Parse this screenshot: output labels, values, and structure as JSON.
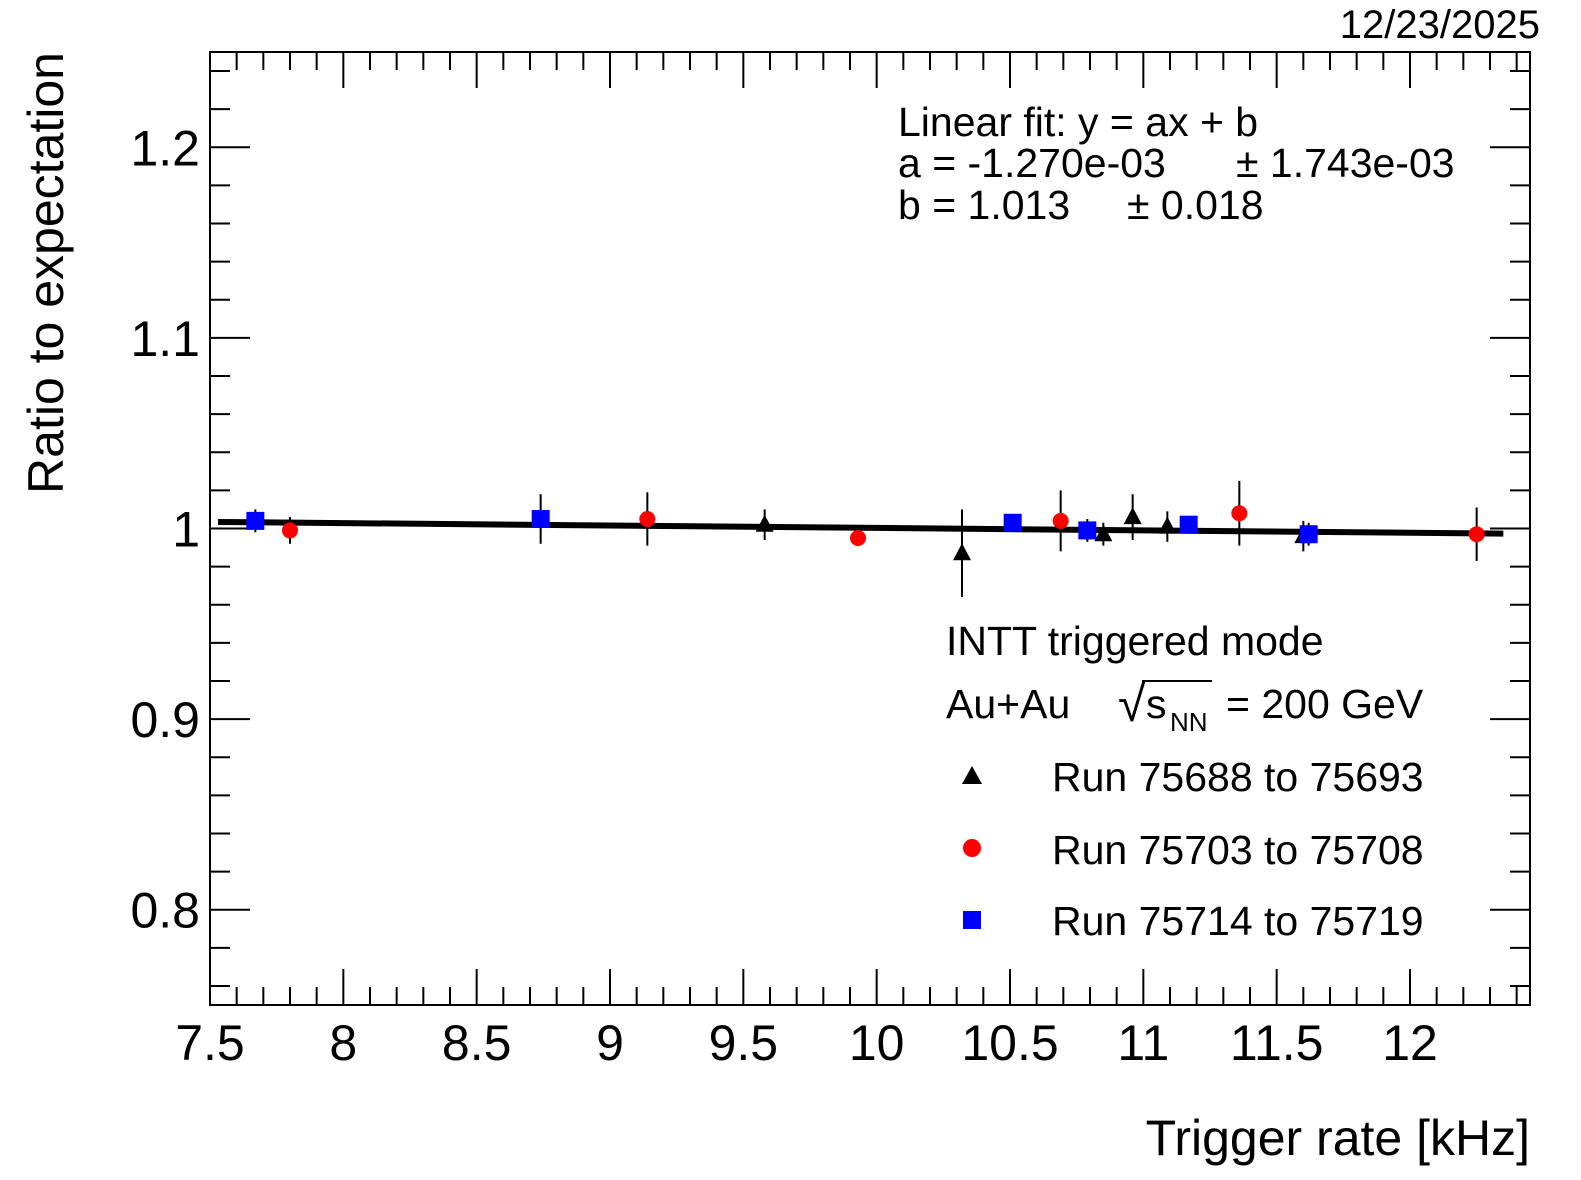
{
  "date": "12/23/2025",
  "chart_data": {
    "type": "scatter",
    "xlabel": "Trigger rate [kHz]",
    "ylabel": "Ratio to expectation",
    "xlim": [
      7.5,
      12.45
    ],
    "ylim": [
      0.75,
      1.25
    ],
    "xticks": [
      7.5,
      8,
      8.5,
      9,
      9.5,
      10,
      10.5,
      11,
      11.5,
      12
    ],
    "xtick_labels": [
      "7.5",
      "8",
      "8.5",
      "9",
      "9.5",
      "10",
      "10.5",
      "11",
      "11.5",
      "12"
    ],
    "yticks": [
      0.8,
      0.9,
      1.0,
      1.1,
      1.2
    ],
    "ytick_labels": [
      "0.8",
      "0.9",
      "1",
      "1.1",
      "1.2"
    ],
    "grid": false,
    "fit": {
      "title": "Linear fit: y = ax + b",
      "a_text": "a = -1.270e-03",
      "a_err_text": "± 1.743e-03",
      "b_text": "b = 1.013",
      "b_err_text": "± 0.018",
      "a": -0.00127,
      "b": 1.013,
      "x_range": [
        7.53,
        12.35
      ]
    },
    "legend": {
      "position": "bottom-right",
      "header1": "INTT triggered mode",
      "collision": "Au+Au",
      "sqrt_symbol": "√",
      "energy_var": "s",
      "energy_sub": "NN",
      "energy_value": "= 200 GeV"
    },
    "series": [
      {
        "name": "Run 75688 to 75693",
        "marker": "triangle",
        "color": "#000000",
        "points": [
          {
            "x": 9.58,
            "y": 1.002,
            "err": 0.008
          },
          {
            "x": 10.32,
            "y": 0.987,
            "err": 0.023
          },
          {
            "x": 10.85,
            "y": 0.997,
            "err": 0.006
          },
          {
            "x": 10.96,
            "y": 1.006,
            "err": 0.012
          },
          {
            "x": 11.09,
            "y": 1.001,
            "err": 0.008
          },
          {
            "x": 11.6,
            "y": 0.996,
            "err": 0.008
          }
        ]
      },
      {
        "name": "Run 75703 to 75708",
        "marker": "circle",
        "color": "#ff0000",
        "points": [
          {
            "x": 7.8,
            "y": 0.999,
            "err": 0.007
          },
          {
            "x": 9.14,
            "y": 1.005,
            "err": 0.014
          },
          {
            "x": 9.93,
            "y": 0.995,
            "err": 0.004
          },
          {
            "x": 10.69,
            "y": 1.004,
            "err": 0.016
          },
          {
            "x": 11.36,
            "y": 1.008,
            "err": 0.017
          },
          {
            "x": 12.25,
            "y": 0.997,
            "err": 0.014
          }
        ]
      },
      {
        "name": "Run 75714 to 75719",
        "marker": "square",
        "color": "#0000ff",
        "points": [
          {
            "x": 7.67,
            "y": 1.004,
            "err": 0.006
          },
          {
            "x": 8.74,
            "y": 1.005,
            "err": 0.013
          },
          {
            "x": 10.51,
            "y": 1.003,
            "err": 0.004
          },
          {
            "x": 10.79,
            "y": 0.999,
            "err": 0.006
          },
          {
            "x": 11.17,
            "y": 1.002,
            "err": 0.004
          },
          {
            "x": 11.62,
            "y": 0.997,
            "err": 0.006
          }
        ]
      }
    ]
  }
}
